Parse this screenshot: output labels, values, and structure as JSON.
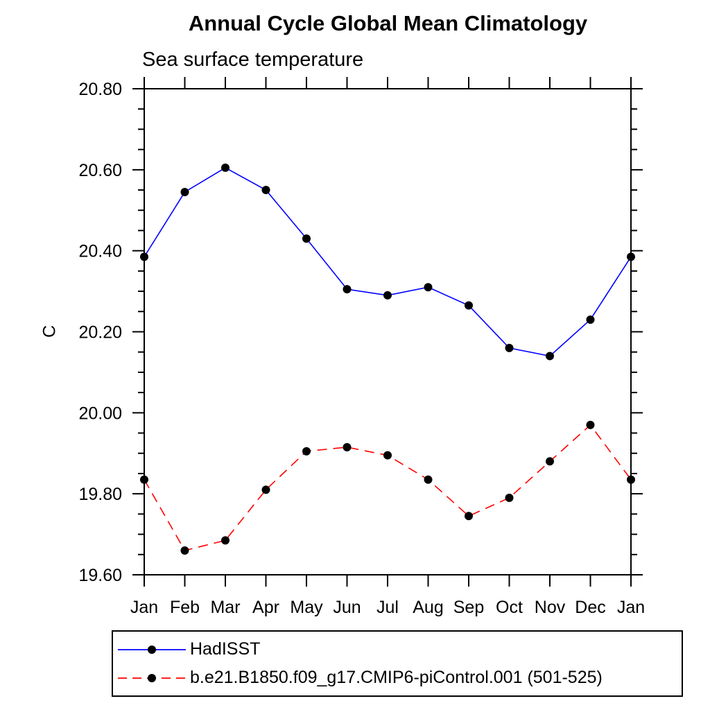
{
  "chart_data": {
    "type": "line",
    "title": "Annual Cycle Global Mean Climatology",
    "subtitle": "Sea surface temperature",
    "ylabel": "C",
    "xlabel": "",
    "ylim": [
      19.6,
      20.8
    ],
    "y_major_tick_step": 0.2,
    "y_minor_tick_step": 0.05,
    "y_tick_labels": [
      "19.60",
      "19.80",
      "20.00",
      "20.20",
      "20.40",
      "20.60",
      "20.80"
    ],
    "grid": false,
    "legend_position": "below-bottom-left",
    "categories": [
      "Jan",
      "Feb",
      "Mar",
      "Apr",
      "May",
      "Jun",
      "Jul",
      "Aug",
      "Sep",
      "Oct",
      "Nov",
      "Dec",
      "Jan"
    ],
    "series": [
      {
        "name": "HadISST",
        "color": "#0000ff",
        "line_style": "solid",
        "marker": "filled-circle",
        "marker_color": "#000000",
        "values": [
          20.385,
          20.545,
          20.605,
          20.55,
          20.43,
          20.305,
          20.29,
          20.31,
          20.265,
          20.16,
          20.14,
          20.23,
          20.385
        ]
      },
      {
        "name": "b.e21.B1850.f09_g17.CMIP6-piControl.001 (501-525)",
        "color": "#ff0000",
        "line_style": "dashed",
        "marker": "filled-circle",
        "marker_color": "#000000",
        "values": [
          19.835,
          19.66,
          19.685,
          19.81,
          19.905,
          19.915,
          19.895,
          19.835,
          19.745,
          19.79,
          19.88,
          19.97,
          19.835
        ]
      }
    ]
  },
  "colors": {
    "axis": "#000000",
    "text": "#000000",
    "background": "#ffffff",
    "series_1": "#0000ff",
    "series_2": "#ff0000"
  }
}
